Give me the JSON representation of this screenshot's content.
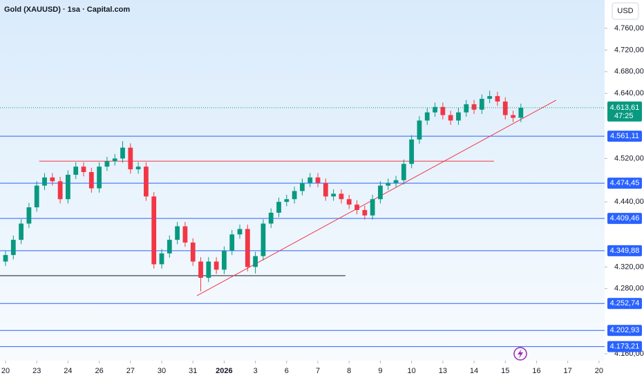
{
  "chart_data": {
    "type": "candlestick",
    "title": "Gold (XAUUSD) · 1sa · Capital.com",
    "currency": "USD",
    "up_color": "#089981",
    "down_color": "#f23645",
    "x": [
      0,
      0.25,
      0.5,
      0.75,
      1,
      1.25,
      1.5,
      1.75,
      2,
      2.25,
      2.5,
      2.75,
      3,
      3.25,
      3.5,
      3.75,
      4,
      4.25,
      4.5,
      4.75,
      5,
      5.25,
      5.5,
      5.75,
      6,
      6.25,
      6.5,
      6.75,
      7,
      7.25,
      7.5,
      7.75,
      8,
      8.25,
      8.5,
      8.75,
      9,
      9.25,
      9.5,
      9.75,
      10,
      10.25,
      10.5,
      10.75,
      11,
      11.25,
      11.5,
      11.75,
      12,
      12.25,
      12.5,
      12.75,
      13,
      13.25,
      13.5,
      13.75,
      14,
      14.25,
      14.5,
      14.75,
      15,
      15.25,
      15.5,
      15.75,
      16,
      16.25,
      16.5
    ],
    "open": [
      4330,
      4342,
      4370,
      4400,
      4430,
      4470,
      4485,
      4478,
      4445,
      4490,
      4505,
      4495,
      4465,
      4505,
      4515,
      4520,
      4540,
      4500,
      4505,
      4450,
      4325,
      4345,
      4370,
      4395,
      4365,
      4330,
      4300,
      4330,
      4315,
      4350,
      4380,
      4390,
      4320,
      4340,
      4400,
      4420,
      4440,
      4445,
      4460,
      4475,
      4485,
      4475,
      4450,
      4455,
      4445,
      4435,
      4425,
      4415,
      4445,
      4470,
      4475,
      4480,
      4510,
      4555,
      4590,
      4605,
      4615,
      4600,
      4590,
      4605,
      4620,
      4610,
      4630,
      4635,
      4625,
      4600,
      4595
    ],
    "high": [
      4350,
      4378,
      4408,
      4438,
      4478,
      4493,
      4493,
      4486,
      4498,
      4513,
      4513,
      4503,
      4513,
      4523,
      4528,
      4552,
      4548,
      4513,
      4513,
      4458,
      4353,
      4378,
      4403,
      4403,
      4373,
      4338,
      4338,
      4338,
      4358,
      4388,
      4398,
      4398,
      4348,
      4408,
      4428,
      4448,
      4453,
      4468,
      4483,
      4493,
      4493,
      4483,
      4463,
      4463,
      4453,
      4443,
      4433,
      4453,
      4478,
      4483,
      4488,
      4518,
      4563,
      4598,
      4613,
      4623,
      4623,
      4608,
      4613,
      4628,
      4628,
      4638,
      4645,
      4643,
      4633,
      4608,
      4621
    ],
    "low": [
      4322,
      4334,
      4362,
      4392,
      4422,
      4462,
      4470,
      4437,
      4437,
      4482,
      4487,
      4457,
      4457,
      4497,
      4507,
      4512,
      4492,
      4492,
      4442,
      4317,
      4317,
      4337,
      4362,
      4357,
      4322,
      4275,
      4292,
      4307,
      4307,
      4342,
      4372,
      4312,
      4308,
      4332,
      4392,
      4412,
      4432,
      4437,
      4452,
      4467,
      4467,
      4442,
      4442,
      4437,
      4427,
      4417,
      4407,
      4407,
      4437,
      4462,
      4467,
      4472,
      4502,
      4547,
      4582,
      4597,
      4592,
      4582,
      4582,
      4597,
      4602,
      4602,
      4622,
      4617,
      4592,
      4587,
      4587
    ],
    "close": [
      4342,
      4370,
      4400,
      4430,
      4470,
      4485,
      4478,
      4445,
      4490,
      4505,
      4495,
      4465,
      4505,
      4515,
      4520,
      4540,
      4500,
      4505,
      4450,
      4325,
      4345,
      4370,
      4395,
      4365,
      4330,
      4300,
      4330,
      4315,
      4350,
      4380,
      4390,
      4320,
      4340,
      4400,
      4420,
      4440,
      4445,
      4460,
      4475,
      4485,
      4475,
      4450,
      4455,
      4445,
      4435,
      4425,
      4415,
      4445,
      4470,
      4475,
      4480,
      4510,
      4555,
      4590,
      4605,
      4615,
      4600,
      4590,
      4605,
      4620,
      4610,
      4630,
      4635,
      4625,
      4600,
      4595,
      4613.61
    ],
    "xlim": [
      -0.177,
      19.18
    ],
    "ylim": [
      4149.8,
      4812.2
    ],
    "xticks": [
      {
        "value": 0,
        "label": "20"
      },
      {
        "value": 1,
        "label": "23"
      },
      {
        "value": 2,
        "label": "24"
      },
      {
        "value": 3,
        "label": "26"
      },
      {
        "value": 4,
        "label": "27"
      },
      {
        "value": 5,
        "label": "30"
      },
      {
        "value": 6,
        "label": "31"
      },
      {
        "value": 7,
        "label": "2026"
      },
      {
        "value": 8,
        "label": "3"
      },
      {
        "value": 9,
        "label": "6"
      },
      {
        "value": 10,
        "label": "7"
      },
      {
        "value": 11,
        "label": "8"
      },
      {
        "value": 12,
        "label": "9"
      },
      {
        "value": 13,
        "label": "10"
      },
      {
        "value": 14,
        "label": "13"
      },
      {
        "value": 15,
        "label": "14"
      },
      {
        "value": 16,
        "label": "15"
      },
      {
        "value": 17,
        "label": "16"
      },
      {
        "value": 18,
        "label": "17"
      },
      {
        "value": 19,
        "label": "20"
      }
    ],
    "yticks": [
      {
        "value": 4760,
        "label": "4.760,00"
      },
      {
        "value": 4720,
        "label": "4.720,00"
      },
      {
        "value": 4680,
        "label": "4.680,00"
      },
      {
        "value": 4640,
        "label": "4.640,00"
      },
      {
        "value": 4520,
        "label": "4.520,00"
      },
      {
        "value": 4440,
        "label": "4.440,00"
      },
      {
        "value": 4320,
        "label": "4.320,00"
      },
      {
        "value": 4280,
        "label": "4.280,00"
      },
      {
        "value": 4160,
        "label": "4.160,00"
      }
    ],
    "level_color": "#2962ff",
    "levels": [
      {
        "value": 4561.11,
        "label": "4.561,11"
      },
      {
        "value": 4474.45,
        "label": "4.474,45"
      },
      {
        "value": 4409.46,
        "label": "4.409,46"
      },
      {
        "value": 4349.88,
        "label": "4.349,88"
      },
      {
        "value": 4252.74,
        "label": "4.252,74"
      },
      {
        "value": 4202.93,
        "label": "4.202,93"
      },
      {
        "value": 4173.21,
        "label": "4.173,21"
      }
    ],
    "current_price": {
      "value": 4613.61,
      "label": "4.613,61",
      "countdown": "47:25",
      "color": "#089981"
    },
    "lines": [
      {
        "color": "#f23645",
        "x": [
          1.08,
          15.64
        ],
        "y": [
          4515,
          4515
        ]
      },
      {
        "color": "#131722",
        "x": [
          -0.18,
          10.88
        ],
        "y": [
          4304,
          4304
        ]
      },
      {
        "color": "#f23645",
        "x": [
          6.13,
          17.63
        ],
        "y": [
          4267,
          4627.5
        ]
      }
    ]
  }
}
